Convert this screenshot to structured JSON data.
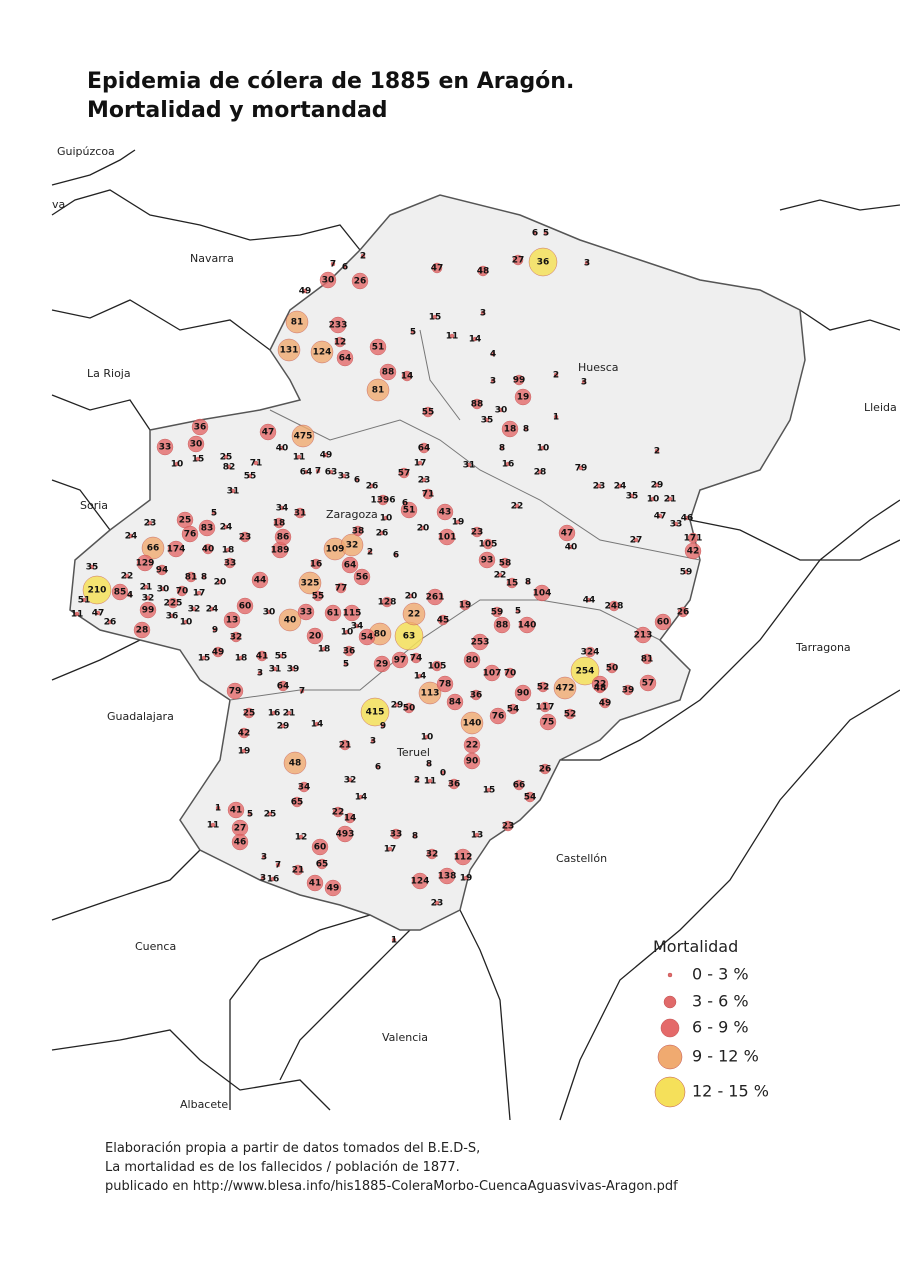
{
  "title_lines": [
    "Epidemia de cólera de 1885 en Aragón.",
    "Mortalidad y mortandad"
  ],
  "places": [
    "Guipúzcoa",
    "va",
    "Navarra",
    "La Rioja",
    "Soria",
    "Guadalajara",
    "Cuenca",
    "Valencia",
    "Albacete",
    "Castellón",
    "Tarragona",
    "Lleida",
    "Huesca",
    "Zaragoza",
    "Teruel"
  ],
  "legend": {
    "title": "Mortalidad",
    "classes": [
      {
        "label": "0 - 3 %",
        "color": "#e06a6a",
        "towns": [
          6,
          5,
          3,
          15,
          11,
          14,
          3,
          4,
          3,
          2,
          3,
          1,
          30,
          35,
          8,
          8,
          10,
          16,
          28,
          31,
          17,
          23,
          79,
          23,
          24,
          35,
          29,
          10,
          21,
          47,
          46,
          33,
          27,
          40,
          59,
          2,
          22,
          22,
          8,
          5,
          44,
          20,
          20,
          19,
          6,
          2,
          10,
          26,
          6,
          26,
          6,
          33,
          63,
          7,
          64,
          49,
          11,
          40,
          71,
          82,
          25,
          15,
          10,
          55,
          31,
          34,
          5,
          24,
          18,
          20,
          8,
          17,
          32,
          24,
          10,
          36,
          30,
          21,
          32,
          4,
          22,
          35,
          51,
          11,
          47,
          26,
          24,
          23,
          9,
          30,
          18,
          15,
          55,
          31,
          39,
          3,
          7,
          16,
          21,
          29,
          14,
          19,
          34,
          10,
          18,
          5,
          14,
          29,
          9,
          3,
          10,
          6,
          8,
          11,
          2,
          0,
          15,
          13,
          17,
          8,
          19,
          23,
          32,
          14,
          12,
          16,
          3,
          7,
          3,
          5,
          25,
          11,
          1,
          7,
          6,
          2,
          49,
          5,
          1
        ]
      },
      {
        "label": "3 - 6 %",
        "color": "#e06a6a",
        "towns": [
          47,
          27,
          12,
          14,
          55,
          64,
          71,
          105,
          58,
          15,
          19,
          59,
          70,
          52,
          54,
          117,
          52,
          49,
          48,
          39,
          50,
          324,
          81,
          171,
          26,
          248,
          128,
          45,
          36,
          74,
          105,
          36,
          50,
          21,
          36,
          66,
          54,
          26,
          23,
          33,
          32,
          65,
          34,
          14,
          22,
          21,
          42,
          25,
          64,
          41,
          49,
          32,
          225,
          70,
          81,
          94,
          40,
          33,
          23,
          18,
          31,
          1396,
          38,
          77,
          55,
          16,
          57,
          23,
          88,
          99,
          48,
          65
        ]
      },
      {
        "label": "6 - 9 %",
        "color": "#e46a6a",
        "towns": [
          233,
          64,
          51,
          26,
          30,
          47,
          36,
          33,
          30,
          83,
          25,
          76,
          189,
          86,
          174,
          129,
          85,
          99,
          28,
          60,
          13,
          61,
          20,
          54,
          56,
          64,
          261,
          253,
          88,
          80,
          107,
          78,
          84,
          76,
          90,
          75,
          22,
          57,
          60,
          213,
          42,
          47,
          51,
          43,
          101,
          93,
          104,
          140,
          112,
          124,
          138,
          60,
          49,
          41,
          27,
          41,
          46,
          79,
          88,
          18,
          19,
          97,
          29,
          22,
          90,
          115,
          33,
          44,
          493
        ]
      },
      {
        "label": "9 - 12 %",
        "color": "#f0aa70",
        "towns": [
          81,
          124,
          131,
          81,
          475,
          109,
          32,
          325,
          22,
          40,
          113,
          140,
          48,
          66,
          472,
          80
        ]
      },
      {
        "label": "12 - 15 %",
        "color": "#f5e05a",
        "towns": [
          36,
          210,
          63,
          415,
          254
        ]
      }
    ]
  },
  "notes": [
    "Elaboración propia a partir de datos tomados del B.E.D-S,",
    "La mortalidad es de los fallecidos / población de 1877.",
    "publicado en http://www.blesa.info/his1885-ColeraMorbo-CuencaAguasvivas-Aragon.pdf"
  ]
}
